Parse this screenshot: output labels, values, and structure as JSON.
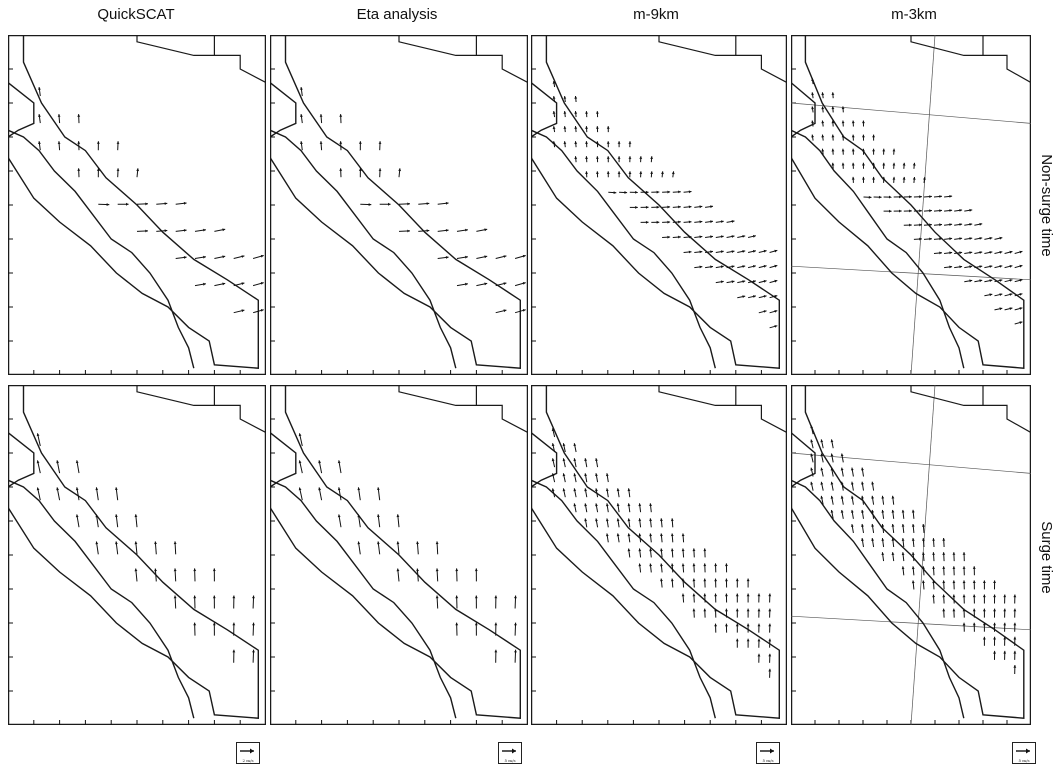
{
  "columns": [
    {
      "title": "QuickSCAT",
      "grid": false
    },
    {
      "title": "Eta analysis",
      "grid": false
    },
    {
      "title": "m-9km",
      "grid": false
    },
    {
      "title": "m-3km",
      "grid": true
    }
  ],
  "rows": [
    {
      "title": "Non-surge time",
      "regime": "non-surge"
    },
    {
      "title": "Surge time",
      "regime": "surge"
    }
  ],
  "scale_labels": [
    "2 m/s",
    "5 m/s",
    "5 m/s",
    "5 m/s"
  ],
  "colors": {
    "line": "#1a1a1a",
    "arrow": "#111111",
    "frame": "#1a1a1a",
    "background": "#ffffff"
  },
  "icons": {
    "wind_vector": "arrow-right",
    "reference_vector": "scale-arrow"
  }
}
